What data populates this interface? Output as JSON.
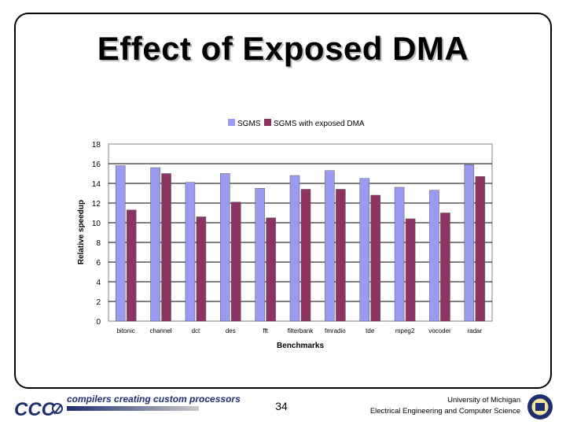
{
  "slide": {
    "title": "Effect of Exposed DMA",
    "page_number": "34"
  },
  "footer": {
    "logo_text": "CCC",
    "tagline": "compilers creating custom processors",
    "affiliation_line1": "University of Michigan",
    "affiliation_line2": "Electrical Engineering and Computer Science"
  },
  "colors": {
    "series1": "#9a9af0",
    "series2": "#8e3464",
    "plot_bg": "#ffffff",
    "grid": "#000000"
  },
  "chart_data": {
    "type": "bar",
    "title": "",
    "xlabel": "Benchmarks",
    "ylabel": "Relative speedup",
    "ylim": [
      0,
      18
    ],
    "yticks": [
      0,
      2,
      4,
      6,
      8,
      10,
      12,
      14,
      16,
      18
    ],
    "grid": true,
    "legend_position": "top-center",
    "categories": [
      "bitonic",
      "channel",
      "dct",
      "des",
      "fft",
      "filterbank",
      "fmradio",
      "tde",
      "mpeg2",
      "vocoder",
      "radar"
    ],
    "series": [
      {
        "name": "SGMS",
        "values": [
          15.8,
          15.6,
          14.1,
          15.0,
          13.5,
          14.8,
          15.3,
          14.5,
          13.6,
          13.3,
          15.9
        ]
      },
      {
        "name": "SGMS with exposed DMA",
        "values": [
          11.3,
          15.0,
          10.6,
          12.1,
          10.5,
          13.4,
          13.4,
          12.8,
          10.4,
          11.0,
          14.7
        ]
      }
    ]
  }
}
